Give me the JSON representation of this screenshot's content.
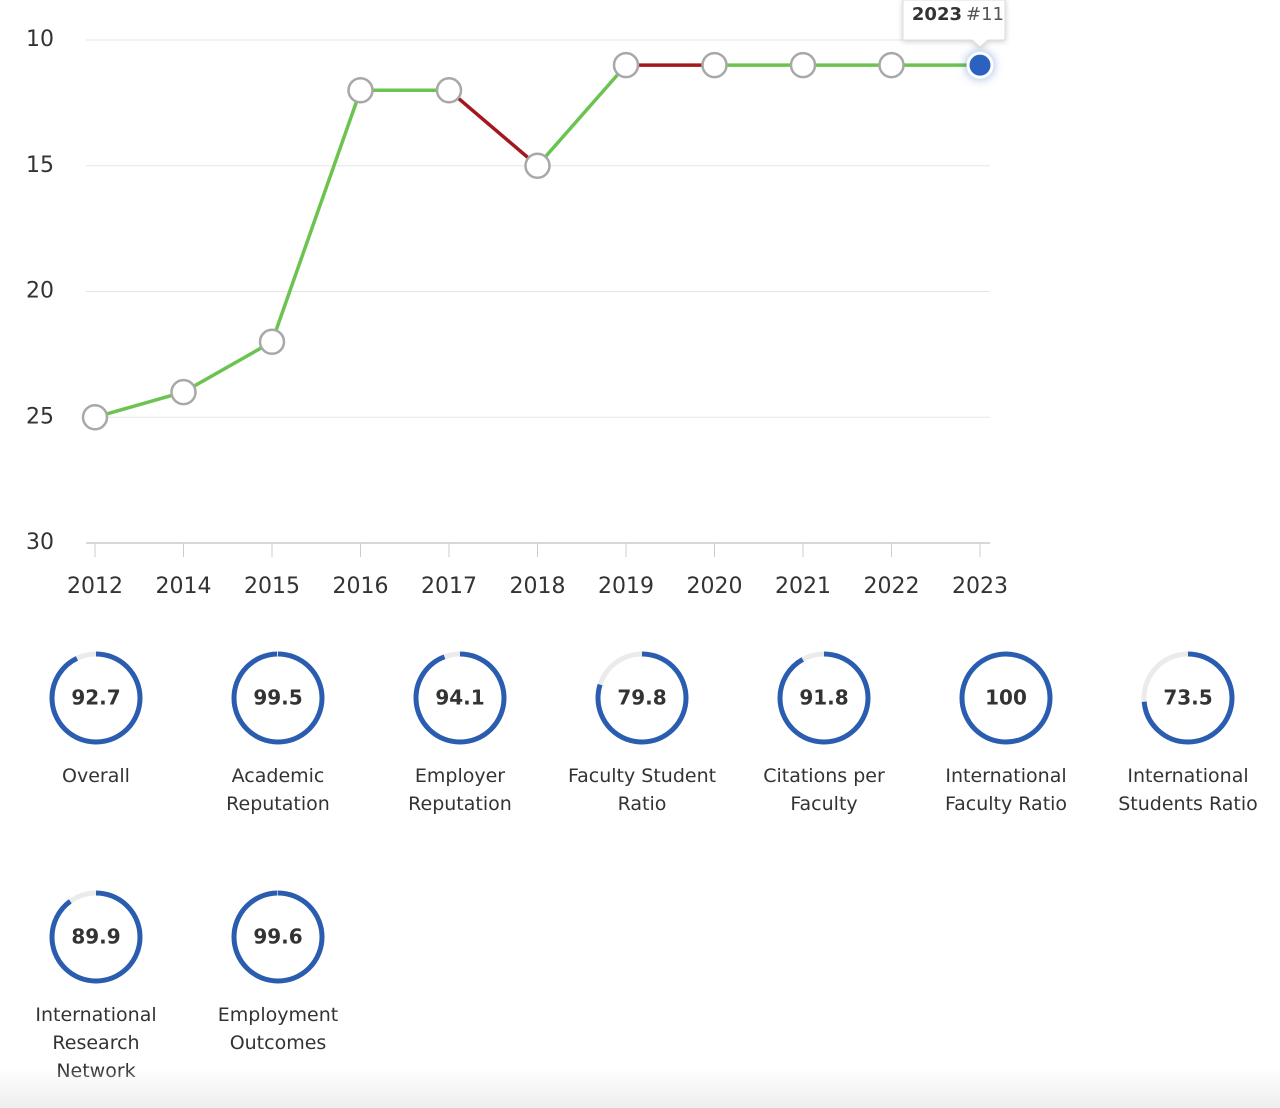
{
  "chart_data": [
    {
      "type": "line",
      "categories": [
        "2012",
        "2014",
        "2015",
        "2016",
        "2017",
        "2018",
        "2019",
        "2020",
        "2021",
        "2022",
        "2023"
      ],
      "values": [
        25,
        24,
        22,
        12,
        12,
        15,
        11,
        11,
        11,
        11,
        11
      ],
      "segment_colors": [
        "#6cc350",
        "#6cc350",
        "#6cc350",
        "#6cc350",
        "#a3171e",
        "#6cc350",
        "#a3171e",
        "#6cc350",
        "#6cc350",
        "#6cc350"
      ],
      "ylim": [
        10,
        30
      ],
      "y_inverted": true,
      "yticks": [
        10,
        15,
        20,
        25,
        30
      ],
      "grid": true,
      "highlight_color": "#2b62c0",
      "tooltip": {
        "category": "2023",
        "text": "#11"
      }
    },
    {
      "type": "gauge",
      "categories": [
        "Overall",
        "Academic Reputation",
        "Employer Reputation",
        "Faculty Student Ratio",
        "Citations per Faculty",
        "International Faculty Ratio",
        "International Students Ratio",
        "International Research Network",
        "Employment Outcomes"
      ],
      "values": [
        92.7,
        99.5,
        94.1,
        79.8,
        91.8,
        100,
        73.5,
        89.9,
        99.6
      ],
      "ylim": [
        0,
        100
      ],
      "color": "#2a5db0",
      "track_color": "#ebebeb"
    }
  ]
}
